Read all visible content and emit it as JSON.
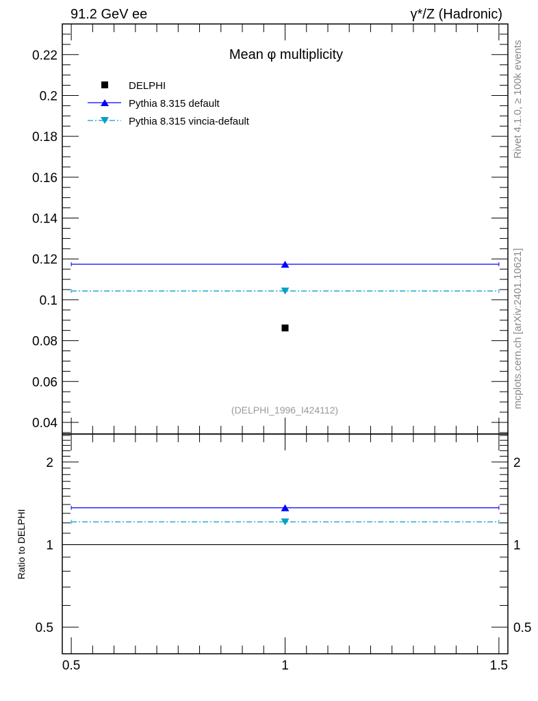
{
  "header": {
    "left": "91.2 GeV ee",
    "right": "γ*/Z (Hadronic)"
  },
  "side_labels": {
    "rivet": "Rivet 4.1.0, ≥ 100k events",
    "mcplots": "mcplots.cern.ch [arXiv:2401.10621]"
  },
  "colors": {
    "data": "#000000",
    "default": "#0000ff",
    "vincia": "#00a0c8"
  },
  "chart_data": [
    {
      "type": "scatter",
      "title": "Mean φ multiplicity",
      "annotation": "(DELPHI_1996_I424112)",
      "xlabel": "",
      "ylabel": "",
      "xlim": [
        0.479,
        1.521
      ],
      "ylim": [
        0.0343,
        0.235
      ],
      "yticks": [
        0.04,
        0.06,
        0.08,
        0.1,
        0.12,
        0.14,
        0.16,
        0.18,
        0.2,
        0.22
      ],
      "ytick_labels": [
        "0.04",
        "0.06",
        "0.08",
        "0.1",
        "0.12",
        "0.14",
        "0.16",
        "0.18",
        "0.2",
        "0.22"
      ],
      "legend_position": "top-left",
      "series": [
        {
          "name": "DELPHI",
          "marker": "square",
          "x": [
            1
          ],
          "y": [
            0.0862
          ],
          "xerr": [
            0
          ]
        },
        {
          "name": "Pythia 8.315 default",
          "marker": "triangle-up",
          "line": "solid",
          "x": [
            1
          ],
          "y": [
            0.1174
          ],
          "xerr": [
            0.5
          ]
        },
        {
          "name": "Pythia 8.315 vincia-default",
          "marker": "triangle-down",
          "line": "dashdot",
          "x": [
            1
          ],
          "y": [
            0.1043
          ],
          "xerr": [
            0.5
          ]
        }
      ]
    },
    {
      "type": "scatter",
      "ylabel": "Ratio to DELPHI",
      "yscale": "log",
      "xlim": [
        0.479,
        1.521
      ],
      "ylim": [
        0.4,
        2.53
      ],
      "yticks": [
        0.5,
        1,
        2
      ],
      "ytick_labels": [
        "0.5",
        "1",
        "2"
      ],
      "xticks": [
        0.5,
        1,
        1.5
      ],
      "xtick_labels": [
        "0.5",
        "1",
        "1.5"
      ],
      "series": [
        {
          "name": "Pythia 8.315 default",
          "x": [
            1
          ],
          "y": [
            1.362
          ],
          "xerr": [
            0.5
          ]
        },
        {
          "name": "Pythia 8.315 vincia-default",
          "x": [
            1
          ],
          "y": [
            1.21
          ],
          "xerr": [
            0.5
          ]
        }
      ]
    }
  ]
}
